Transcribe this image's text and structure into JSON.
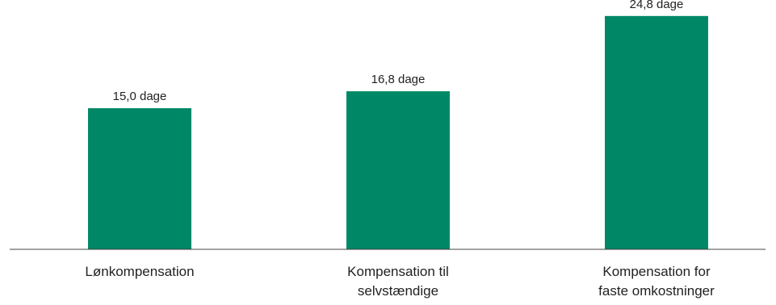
{
  "chart_data": {
    "type": "bar",
    "categories": [
      [
        "Lønkompensation"
      ],
      [
        "Kompensation til",
        "selvstændige"
      ],
      [
        "Kompensation for",
        "faste omkostninger"
      ]
    ],
    "values": [
      15.0,
      16.8,
      24.8
    ],
    "data_labels": [
      "15,0 dage",
      "16,8 dage",
      "24,8 dage"
    ],
    "title": "",
    "xlabel": "",
    "ylabel": "",
    "ylim": [
      0,
      26.5
    ],
    "grid": false,
    "legend": "none",
    "colors": {
      "bar": "#008866",
      "axis": "#444444",
      "text": "#222222"
    }
  }
}
